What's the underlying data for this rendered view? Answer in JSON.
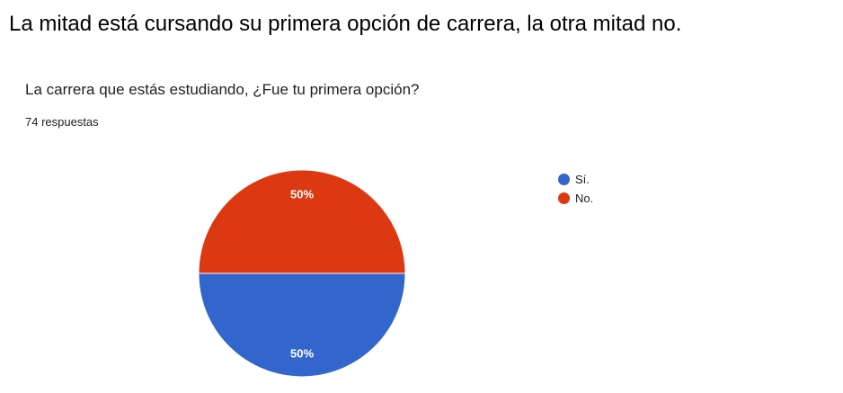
{
  "caption": "La mitad está cursando su primera opción de carrera, la otra mitad no.",
  "question": "La carrera que estás estudiando, ¿Fue tu primera opción?",
  "responses": "74 respuestas",
  "chart_data": {
    "type": "pie",
    "title": "La carrera que estás estudiando, ¿Fue tu primera opción?",
    "categories": [
      "Sí.",
      "No."
    ],
    "values": [
      50,
      50
    ],
    "data_labels": [
      "50%",
      "50%"
    ],
    "colors": [
      "#3366cc",
      "#dc3912"
    ],
    "legend_position": "right",
    "total_responses": 74
  }
}
